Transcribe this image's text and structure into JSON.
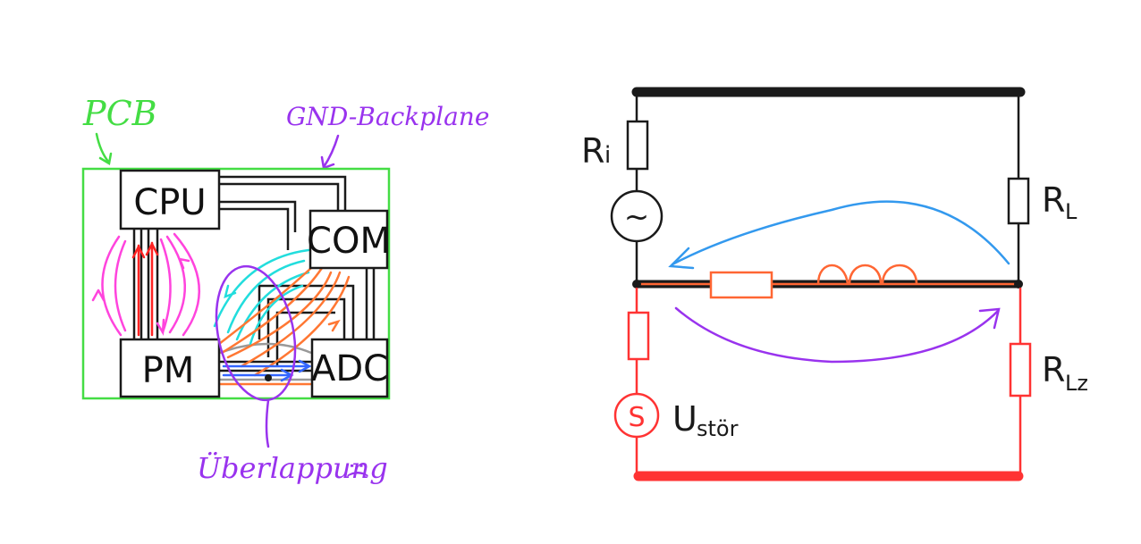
{
  "left_diagram": {
    "pcb_label": "PCB",
    "backplane_label": "GND-Backplane",
    "overlap_label": "Überlappung",
    "overlap_emoticon": ":(",
    "blocks": {
      "cpu": "CPU",
      "com": "COM",
      "pm": "PM",
      "adc": "ADC"
    },
    "colors": {
      "pcb": "#44dd44",
      "annotation": "#9933ee",
      "magenta_flux": "#ff44dd",
      "cyan_flux": "#22dddd",
      "orange_flux": "#ff7733",
      "red_current": "#ff2222",
      "blue_current": "#3366ff"
    }
  },
  "right_circuit": {
    "ri_label": "R",
    "ri_sub": "i",
    "rl_label": "R",
    "rl_sub": "L",
    "rlz_label": "R",
    "rlz_sub": "Lz",
    "source_symbol": "~",
    "disturb_source_symbol": "S",
    "disturb_label": "U",
    "disturb_sub": "stör",
    "colors": {
      "wire": "#1a1a1a",
      "disturb": "#ff3333",
      "shared": "#ff6633",
      "blue_arrow": "#3399ee",
      "purple_arrow": "#9933ee"
    }
  }
}
